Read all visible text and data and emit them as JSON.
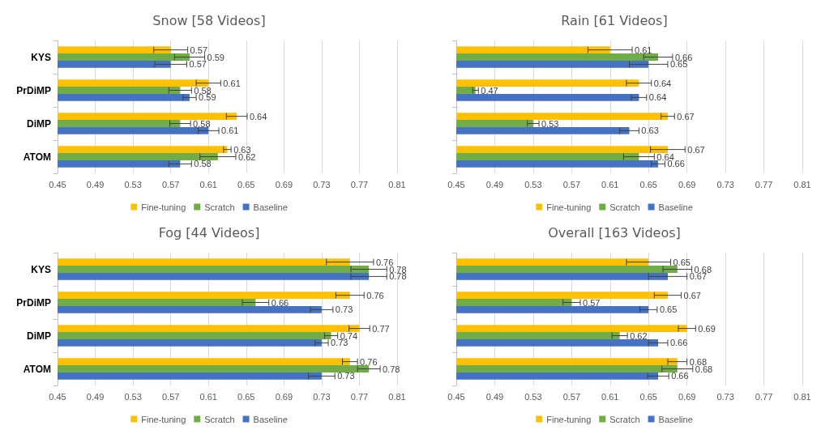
{
  "chart_data": [
    {
      "type": "bar",
      "orientation": "horizontal",
      "title": "Snow [58 Videos]",
      "categories": [
        "KYS",
        "PrDiMP",
        "DiMP",
        "ATOM"
      ],
      "xlim": [
        0.45,
        0.81
      ],
      "xticks": [
        0.45,
        0.49,
        0.53,
        0.57,
        0.61,
        0.65,
        0.69,
        0.73,
        0.77,
        0.81
      ],
      "grid": "x",
      "legend": "bottom",
      "data_labels": true,
      "series": [
        {
          "name": "Fine-tuning",
          "color": "#ffc000",
          "values": [
            0.57,
            0.61,
            0.64,
            0.63
          ],
          "errors": [
            0.018,
            0.013,
            0.011,
            0.004
          ]
        },
        {
          "name": "Scratch",
          "color": "#70ad47",
          "values": [
            0.59,
            0.58,
            0.58,
            0.62
          ],
          "errors": [
            0.016,
            0.012,
            0.011,
            0.019
          ]
        },
        {
          "name": "Baseline",
          "color": "#4472c4",
          "values": [
            0.57,
            0.59,
            0.61,
            0.58
          ],
          "errors": [
            0.017,
            0.007,
            0.011,
            0.012
          ]
        }
      ]
    },
    {
      "type": "bar",
      "orientation": "horizontal",
      "title": "Rain [61 Videos]",
      "categories": [
        null,
        null,
        null,
        null
      ],
      "xlim": [
        0.45,
        0.81
      ],
      "xticks": [
        0.45,
        0.49,
        0.53,
        0.57,
        0.61,
        0.65,
        0.69,
        0.73,
        0.77,
        0.81
      ],
      "grid": "x",
      "legend": "bottom",
      "data_labels": true,
      "series": [
        {
          "name": "Fine-tuning",
          "color": "#ffc000",
          "values": [
            0.61,
            0.64,
            0.67,
            0.67
          ],
          "errors": [
            0.023,
            0.013,
            0.007,
            0.018
          ]
        },
        {
          "name": "Scratch",
          "color": "#70ad47",
          "values": [
            0.66,
            0.47,
            0.53,
            0.64
          ],
          "errors": [
            0.015,
            0.003,
            0.006,
            0.016
          ]
        },
        {
          "name": "Baseline",
          "color": "#4472c4",
          "values": [
            0.65,
            0.64,
            0.63,
            0.66
          ],
          "errors": [
            0.02,
            0.008,
            0.01,
            0.007
          ]
        }
      ]
    },
    {
      "type": "bar",
      "orientation": "horizontal",
      "title": "Fog [44 Videos]",
      "categories": [
        "KYS",
        "PrDiMP",
        "DiMP",
        "ATOM"
      ],
      "xlim": [
        0.45,
        0.81
      ],
      "xticks": [
        0.45,
        0.49,
        0.53,
        0.57,
        0.61,
        0.65,
        0.69,
        0.73,
        0.77,
        0.81
      ],
      "grid": "x",
      "legend": "bottom",
      "data_labels": true,
      "series": [
        {
          "name": "Fine-tuning",
          "color": "#ffc000",
          "values": [
            0.76,
            0.76,
            0.77,
            0.76
          ],
          "errors": [
            0.025,
            0.015,
            0.011,
            0.008
          ]
        },
        {
          "name": "Scratch",
          "color": "#70ad47",
          "values": [
            0.78,
            0.66,
            0.74,
            0.78
          ],
          "errors": [
            0.019,
            0.014,
            0.007,
            0.012
          ]
        },
        {
          "name": "Baseline",
          "color": "#4472c4",
          "values": [
            0.78,
            0.73,
            0.73,
            0.73
          ],
          "errors": [
            0.019,
            0.012,
            0.007,
            0.014
          ]
        }
      ]
    },
    {
      "type": "bar",
      "orientation": "horizontal",
      "title": "Overall [163 Videos]",
      "categories": [
        null,
        null,
        null,
        null
      ],
      "xlim": [
        0.45,
        0.81
      ],
      "xticks": [
        0.45,
        0.49,
        0.53,
        0.57,
        0.61,
        0.65,
        0.69,
        0.73,
        0.77,
        0.81
      ],
      "grid": "x",
      "legend": "bottom",
      "data_labels": true,
      "series": [
        {
          "name": "Fine-tuning",
          "color": "#ffc000",
          "values": [
            0.65,
            0.67,
            0.69,
            0.68
          ],
          "errors": [
            0.023,
            0.014,
            0.009,
            0.01
          ]
        },
        {
          "name": "Scratch",
          "color": "#70ad47",
          "values": [
            0.68,
            0.57,
            0.62,
            0.68
          ],
          "errors": [
            0.015,
            0.009,
            0.008,
            0.016
          ]
        },
        {
          "name": "Baseline",
          "color": "#4472c4",
          "values": [
            0.67,
            0.65,
            0.66,
            0.66
          ],
          "errors": [
            0.02,
            0.009,
            0.01,
            0.011
          ]
        }
      ]
    }
  ]
}
